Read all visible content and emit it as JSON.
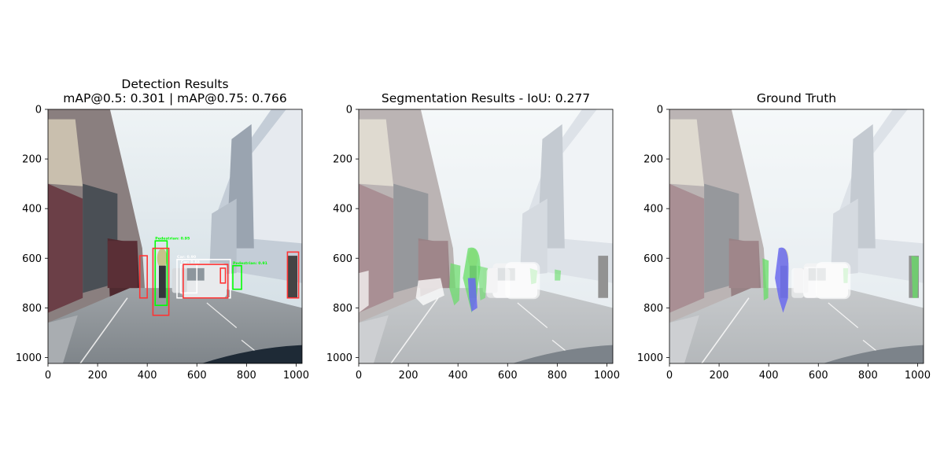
{
  "panels": [
    {
      "title_lines": [
        "Detection Results",
        "mAP@0.5: 0.301 | mAP@0.75: 0.766"
      ],
      "detections": [
        {
          "label": "Pedestrian: 0.95",
          "color": "#00ff00",
          "box": [
            432,
            530,
            480,
            790
          ]
        },
        {
          "label": "Car: 0.90",
          "color": "#ffffff",
          "box": [
            520,
            605,
            735,
            760
          ]
        },
        {
          "label": "Car: 0.88",
          "color": "#ffffff",
          "box": [
            535,
            625,
            600,
            740
          ]
        },
        {
          "label": "Pedestrian: 0.91",
          "color": "#00ff00",
          "box": [
            745,
            630,
            780,
            725
          ]
        },
        {
          "label": "",
          "color": "#ff3333",
          "box": [
            423,
            560,
            487,
            830
          ]
        },
        {
          "label": "",
          "color": "#ff3333",
          "box": [
            370,
            590,
            400,
            760
          ]
        },
        {
          "label": "",
          "color": "#ff3333",
          "box": [
            965,
            575,
            1010,
            760
          ]
        },
        {
          "label": "",
          "color": "#ff3333",
          "box": [
            545,
            625,
            725,
            760
          ]
        },
        {
          "label": "",
          "color": "#ff3333",
          "box": [
            695,
            640,
            715,
            700
          ]
        }
      ]
    },
    {
      "title_lines": [
        "Segmentation Results - IoU: 0.277"
      ]
    },
    {
      "title_lines": [
        "Ground Truth"
      ]
    }
  ],
  "axes": {
    "xticks": [
      0,
      200,
      400,
      600,
      800,
      1000
    ],
    "yticks": [
      0,
      200,
      400,
      600,
      800,
      1000
    ],
    "range": [
      0,
      1024
    ]
  },
  "colors": {
    "sky": "#dde8ee",
    "road": "#8e949a",
    "building_left": "#8a7f7f",
    "building_right": "#c4cdd7",
    "detection_green": "#00ff00",
    "detection_red": "#ff3333",
    "mask_green": "#66dd66",
    "mask_blue": "#6a6aee"
  }
}
